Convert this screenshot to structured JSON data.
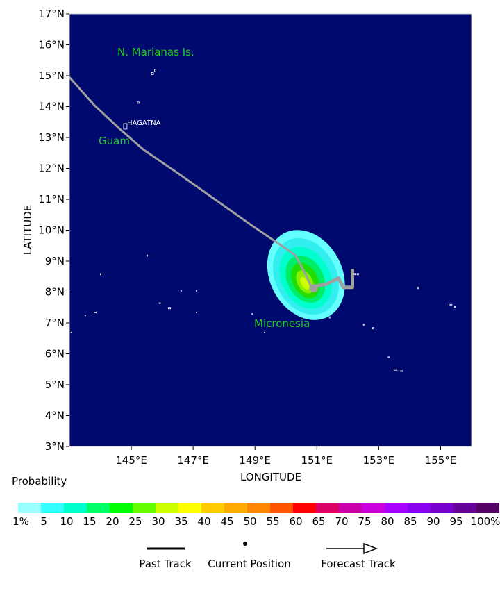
{
  "map": {
    "lat_range": [
      3,
      17
    ],
    "lon_range": [
      143,
      156
    ],
    "lat_ticks": [
      "3°N",
      "4°N",
      "5°N",
      "6°N",
      "7°N",
      "8°N",
      "9°N",
      "10°N",
      "11°N",
      "12°N",
      "13°N",
      "14°N",
      "15°N",
      "16°N",
      "17°N"
    ],
    "lon_ticks": [
      {
        "lon": 145,
        "label": "145°E"
      },
      {
        "lon": 147,
        "label": "147°E"
      },
      {
        "lon": 149,
        "label": "149°E"
      },
      {
        "lon": 151,
        "label": "151°E"
      },
      {
        "lon": 153,
        "label": "153°E"
      },
      {
        "lon": 155,
        "label": "155°E"
      }
    ],
    "xlabel": "LONGITUDE",
    "ylabel": "LATITUDE",
    "place_labels": {
      "marianas": "N. Marianas Is.",
      "guam": "Guam",
      "hagatna": "HAGATNA",
      "micronesia": "Micronesia"
    },
    "colors": {
      "ocean": "#000a6e",
      "track": "#a0a0a0",
      "coast": "#ffffff"
    },
    "probability_rings": [
      {
        "value": 1,
        "color": "#66ffff"
      },
      {
        "value": 5,
        "color": "#33eeee"
      },
      {
        "value": 10,
        "color": "#00ffcc"
      },
      {
        "value": 15,
        "color": "#00ee66"
      },
      {
        "value": 20,
        "color": "#22dd00"
      },
      {
        "value": 25,
        "color": "#88ee00"
      },
      {
        "value": 30,
        "color": "#ccff00"
      }
    ],
    "forecast_track": [
      [
        143.0,
        14.95
      ],
      [
        143.8,
        14.05
      ],
      [
        144.6,
        13.3
      ],
      [
        145.4,
        12.6
      ],
      [
        146.5,
        11.85
      ],
      [
        147.7,
        11.0
      ],
      [
        148.9,
        10.15
      ],
      [
        150.3,
        9.2
      ],
      [
        150.65,
        8.55
      ],
      [
        150.8,
        8.2
      ],
      [
        150.85,
        8.1
      ]
    ],
    "past_track": [
      [
        150.9,
        8.1
      ],
      [
        151.0,
        8.2
      ],
      [
        151.3,
        8.25
      ],
      [
        151.7,
        8.45
      ],
      [
        151.85,
        8.15
      ],
      [
        152.15,
        8.15
      ],
      [
        152.15,
        8.75
      ]
    ],
    "current_position": [
      150.9,
      8.12
    ]
  },
  "legend": {
    "title": "Probability",
    "scale": [
      {
        "label": "1%",
        "color": "#99ffff"
      },
      {
        "label": "5",
        "color": "#33ffff"
      },
      {
        "label": "10",
        "color": "#00ffcc"
      },
      {
        "label": "15",
        "color": "#00ff66"
      },
      {
        "label": "20",
        "color": "#00ff00"
      },
      {
        "label": "25",
        "color": "#66ff00"
      },
      {
        "label": "30",
        "color": "#ccff00"
      },
      {
        "label": "35",
        "color": "#ffff00"
      },
      {
        "label": "40",
        "color": "#ffcc00"
      },
      {
        "label": "45",
        "color": "#ffaa00"
      },
      {
        "label": "50",
        "color": "#ff8800"
      },
      {
        "label": "55",
        "color": "#ff5500"
      },
      {
        "label": "60",
        "color": "#ff0000"
      },
      {
        "label": "65",
        "color": "#dd0066"
      },
      {
        "label": "70",
        "color": "#cc00aa"
      },
      {
        "label": "75",
        "color": "#cc00dd"
      },
      {
        "label": "80",
        "color": "#aa00ff"
      },
      {
        "label": "85",
        "color": "#8800ee"
      },
      {
        "label": "90",
        "color": "#7700cc"
      },
      {
        "label": "95",
        "color": "#660099"
      },
      {
        "label": "",
        "color": "#550066"
      }
    ],
    "scale_end_label": "100%",
    "keys": {
      "past_track": "Past Track",
      "current_position": "Current Position",
      "forecast_track": "Forecast Track"
    }
  }
}
